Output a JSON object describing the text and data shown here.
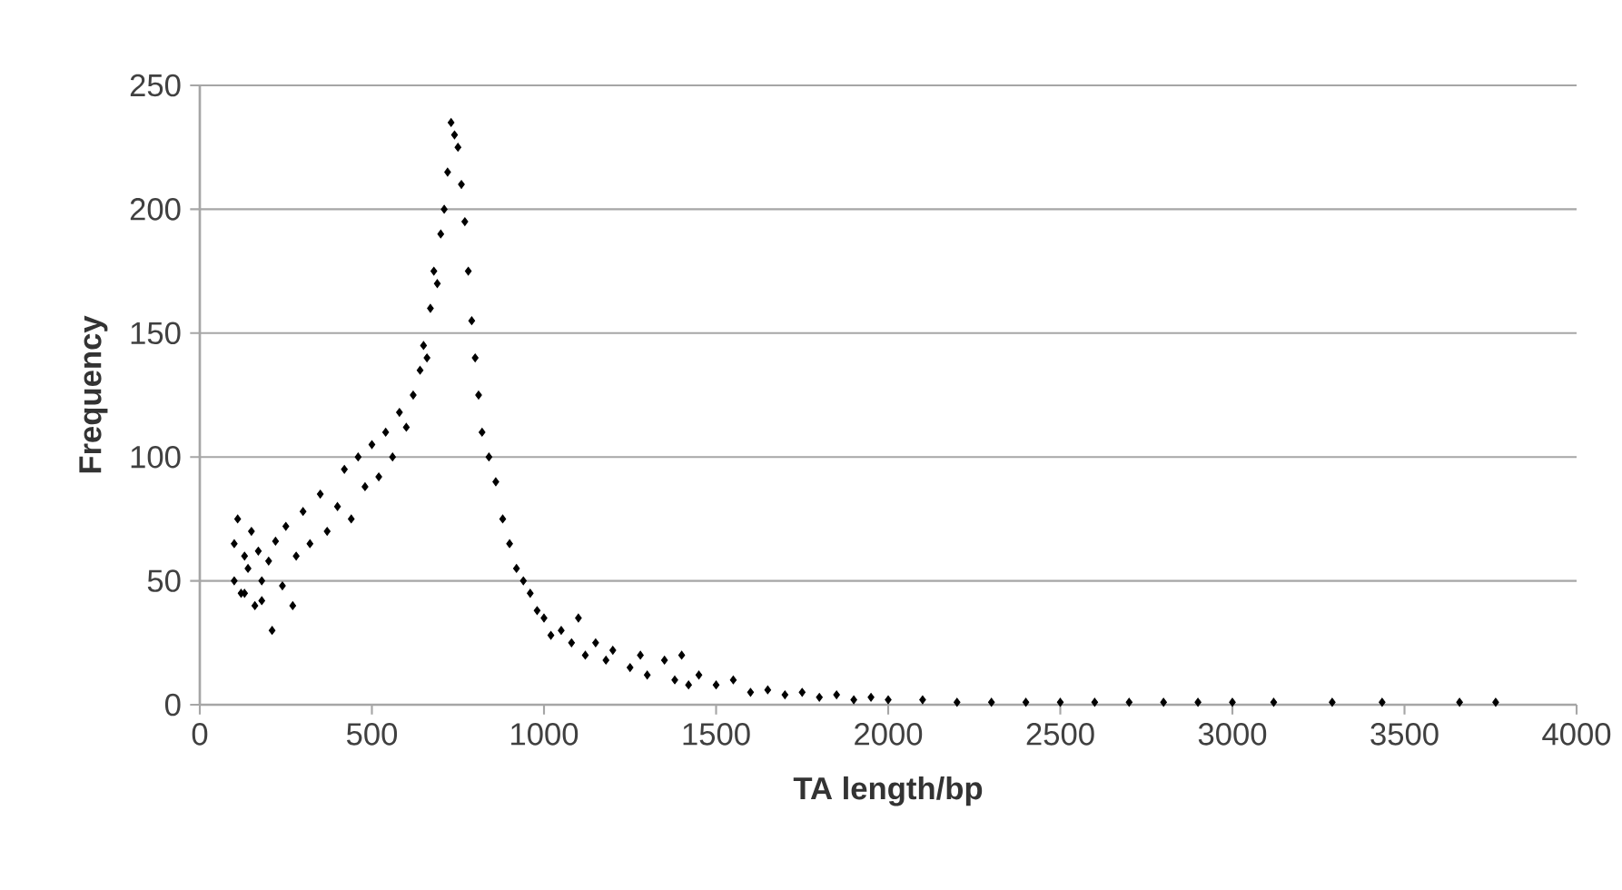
{
  "chart_data": {
    "type": "scatter",
    "xlabel": "TA length/bp",
    "ylabel": "Frequency",
    "x": [
      100,
      100,
      110,
      120,
      130,
      130,
      140,
      150,
      160,
      170,
      180,
      180,
      200,
      210,
      220,
      240,
      250,
      270,
      280,
      300,
      320,
      350,
      370,
      400,
      420,
      440,
      460,
      480,
      500,
      520,
      540,
      560,
      580,
      600,
      620,
      640,
      650,
      660,
      670,
      680,
      690,
      700,
      710,
      720,
      730,
      740,
      750,
      760,
      770,
      780,
      790,
      800,
      810,
      820,
      840,
      860,
      880,
      900,
      920,
      940,
      960,
      980,
      1000,
      1020,
      1050,
      1080,
      1100,
      1120,
      1150,
      1180,
      1200,
      1250,
      1280,
      1300,
      1350,
      1380,
      1400,
      1420,
      1450,
      1500,
      1550,
      1600,
      1650,
      1700,
      1750,
      1800,
      1850,
      1900,
      1950,
      2000,
      2100,
      2200,
      2300,
      2400,
      2500,
      2600,
      2700,
      2800,
      2900,
      3000,
      3120,
      3290,
      3435,
      3660,
      3765
    ],
    "values": [
      50,
      65,
      75,
      45,
      60,
      45,
      55,
      70,
      40,
      62,
      50,
      42,
      58,
      30,
      66,
      48,
      72,
      40,
      60,
      78,
      65,
      85,
      70,
      80,
      95,
      75,
      100,
      88,
      105,
      92,
      110,
      100,
      118,
      112,
      125,
      135,
      145,
      140,
      160,
      175,
      170,
      190,
      200,
      215,
      235,
      230,
      225,
      210,
      195,
      175,
      155,
      140,
      125,
      110,
      100,
      90,
      75,
      65,
      55,
      50,
      45,
      38,
      35,
      28,
      30,
      25,
      35,
      20,
      25,
      18,
      22,
      15,
      20,
      12,
      18,
      10,
      20,
      8,
      12,
      8,
      10,
      5,
      6,
      4,
      5,
      3,
      4,
      2,
      3,
      2,
      2,
      1,
      1,
      1,
      1,
      1,
      1,
      1,
      1,
      1,
      1,
      1,
      1,
      1,
      1
    ],
    "color": "#000000",
    "marker": "diamond",
    "xlim": [
      0,
      4000
    ],
    "xticks": [
      0,
      500,
      1000,
      1500,
      2000,
      2500,
      3000,
      3500,
      4000
    ],
    "ylim": [
      0,
      250
    ],
    "yticks": [
      0,
      50,
      100,
      150,
      200,
      250
    ],
    "grid": "y"
  }
}
